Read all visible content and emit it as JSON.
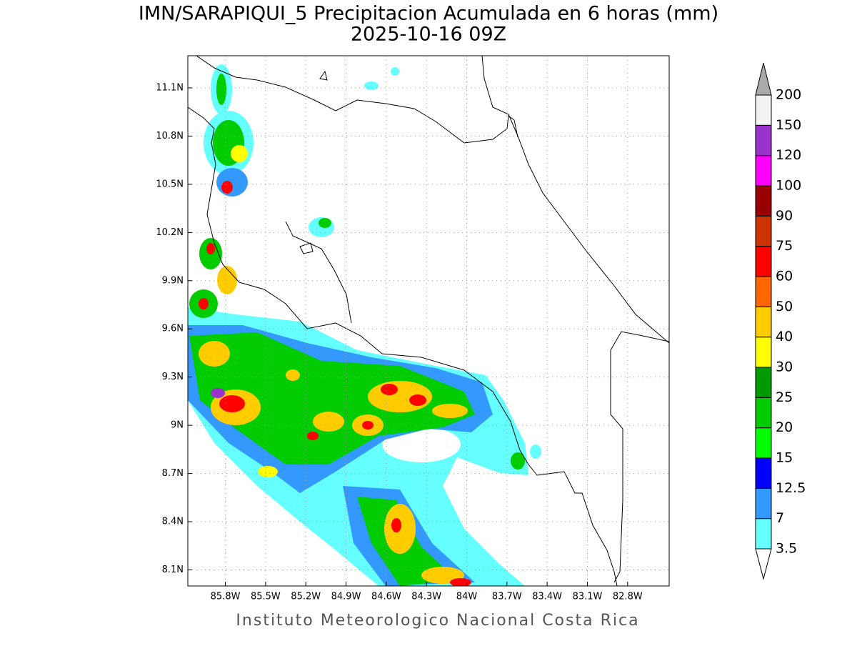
{
  "title": "IMN/SARAPIQUI_5 Precipitacion Acumulada en 6 horas (mm)",
  "subtitle": "2025-10-16 09Z",
  "footer": "Instituto Meteorologico Nacional Costa Rica",
  "map": {
    "lat_range": [
      8.0,
      11.3
    ],
    "lon_range": [
      -86.08,
      -82.49
    ],
    "lat_ticks": [
      {
        "value": 11.1,
        "label": "11.1N"
      },
      {
        "value": 10.8,
        "label": "10.8N"
      },
      {
        "value": 10.5,
        "label": "10.5N"
      },
      {
        "value": 10.2,
        "label": "10.2N"
      },
      {
        "value": 9.9,
        "label": "9.9N"
      },
      {
        "value": 9.6,
        "label": "9.6N"
      },
      {
        "value": 9.3,
        "label": "9.3N"
      },
      {
        "value": 9,
        "label": "9N"
      },
      {
        "value": 8.7,
        "label": "8.7N"
      },
      {
        "value": 8.4,
        "label": "8.4N"
      },
      {
        "value": 8.1,
        "label": "8.1N"
      }
    ],
    "lon_ticks": [
      {
        "value": -85.8,
        "label": "85.8W"
      },
      {
        "value": -85.5,
        "label": "85.5W"
      },
      {
        "value": -85.2,
        "label": "85.2W"
      },
      {
        "value": -84.9,
        "label": "84.9W"
      },
      {
        "value": -84.6,
        "label": "84.6W"
      },
      {
        "value": -84.3,
        "label": "84.3W"
      },
      {
        "value": -84,
        "label": "84W"
      },
      {
        "value": -83.7,
        "label": "83.7W"
      },
      {
        "value": -83.4,
        "label": "83.4W"
      },
      {
        "value": -83.1,
        "label": "83.1W"
      },
      {
        "value": -82.8,
        "label": "82.8W"
      }
    ],
    "grid": true
  },
  "colorbar": {
    "levels": [
      3.5,
      7,
      12.5,
      15,
      20,
      25,
      30,
      40,
      50,
      60,
      75,
      90,
      100,
      120,
      150,
      200
    ],
    "colors": [
      "#66ffff",
      "#3399ff",
      "#0000ff",
      "#00ff00",
      "#00cc00",
      "#009900",
      "#ffff00",
      "#ffcc00",
      "#ff6600",
      "#ff0000",
      "#cc3300",
      "#990000",
      "#ff00ff",
      "#9933cc",
      "#f2f2f2"
    ],
    "over_color": "#aaaaaa",
    "under_color": "#ffffff"
  }
}
